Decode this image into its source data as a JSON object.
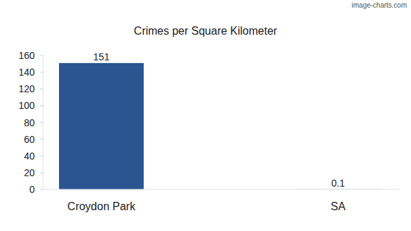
{
  "chart_data": {
    "type": "bar",
    "title": "Crimes per Square Kilometer",
    "annotations": [
      "image-charts.com"
    ],
    "categories": [
      "Croydon Park",
      "SA"
    ],
    "values": [
      151,
      0.1
    ],
    "color": "#2b5591",
    "ylim": [
      0,
      160
    ],
    "yticks": [
      0,
      20,
      40,
      60,
      80,
      100,
      120,
      140,
      160
    ],
    "grid": false,
    "data_labels": true
  }
}
